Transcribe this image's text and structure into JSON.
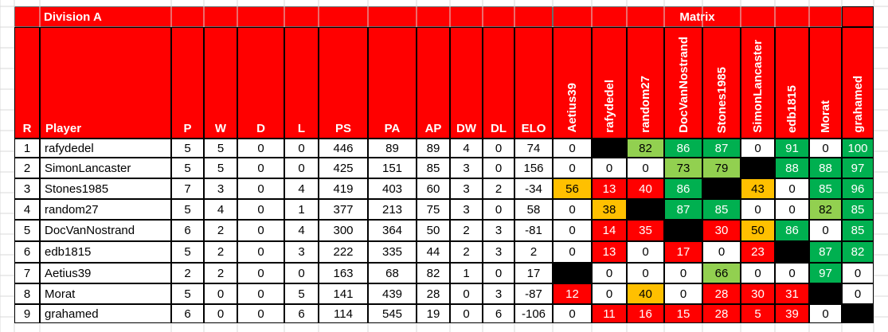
{
  "division_title": "Division A",
  "matrix_title": "Matrix",
  "headers": [
    "R",
    "Player",
    "P",
    "W",
    "D",
    "L",
    "PS",
    "PA",
    "AP",
    "DW",
    "DL",
    "ELO"
  ],
  "matrix_headers": [
    "Aetius39",
    "rafydedel",
    "random27",
    "DocVanNostrand",
    "Stones1985",
    "SimonLancaster",
    "edb1815",
    "Morat",
    "grahamed"
  ],
  "rows": [
    {
      "r": "1",
      "player": "rafydedel",
      "p": "5",
      "w": "5",
      "d": "0",
      "l": "0",
      "ps": "446",
      "pa": "89",
      "ap": "89",
      "dw": "4",
      "dl": "0",
      "elo": "74",
      "matrix": [
        "0",
        "",
        "82",
        "86",
        "87",
        "0",
        "91",
        "0",
        "100"
      ]
    },
    {
      "r": "2",
      "player": "SimonLancaster",
      "p": "5",
      "w": "5",
      "d": "0",
      "l": "0",
      "ps": "425",
      "pa": "151",
      "ap": "85",
      "dw": "3",
      "dl": "0",
      "elo": "156",
      "matrix": [
        "0",
        "0",
        "0",
        "73",
        "79",
        "",
        "88",
        "88",
        "97"
      ]
    },
    {
      "r": "3",
      "player": "Stones1985",
      "p": "7",
      "w": "3",
      "d": "0",
      "l": "4",
      "ps": "419",
      "pa": "403",
      "ap": "60",
      "dw": "3",
      "dl": "2",
      "elo": "-34",
      "matrix": [
        "56",
        "13",
        "40",
        "86",
        "",
        "43",
        "0",
        "85",
        "96"
      ]
    },
    {
      "r": "4",
      "player": "random27",
      "p": "5",
      "w": "4",
      "d": "0",
      "l": "1",
      "ps": "377",
      "pa": "213",
      "ap": "75",
      "dw": "3",
      "dl": "0",
      "elo": "58",
      "matrix": [
        "0",
        "38",
        "",
        "87",
        "85",
        "0",
        "0",
        "82",
        "85"
      ]
    },
    {
      "r": "5",
      "player": "DocVanNostrand",
      "p": "6",
      "w": "2",
      "d": "0",
      "l": "4",
      "ps": "300",
      "pa": "364",
      "ap": "50",
      "dw": "2",
      "dl": "3",
      "elo": "-81",
      "matrix": [
        "0",
        "14",
        "35",
        "",
        "30",
        "50",
        "86",
        "0",
        "85"
      ]
    },
    {
      "r": "6",
      "player": "edb1815",
      "p": "5",
      "w": "2",
      "d": "0",
      "l": "3",
      "ps": "222",
      "pa": "335",
      "ap": "44",
      "dw": "2",
      "dl": "3",
      "elo": "2",
      "matrix": [
        "0",
        "13",
        "0",
        "17",
        "0",
        "23",
        "",
        "87",
        "82"
      ]
    },
    {
      "r": "7",
      "player": "Aetius39",
      "p": "2",
      "w": "2",
      "d": "0",
      "l": "0",
      "ps": "163",
      "pa": "68",
      "ap": "82",
      "dw": "1",
      "dl": "0",
      "elo": "17",
      "matrix": [
        "",
        "0",
        "0",
        "0",
        "66",
        "0",
        "0",
        "97",
        "0"
      ]
    },
    {
      "r": "8",
      "player": "Morat",
      "p": "5",
      "w": "0",
      "d": "0",
      "l": "5",
      "ps": "141",
      "pa": "439",
      "ap": "28",
      "dw": "0",
      "dl": "3",
      "elo": "-87",
      "matrix": [
        "12",
        "0",
        "40",
        "0",
        "28",
        "30",
        "31",
        "",
        "0"
      ]
    },
    {
      "r": "9",
      "player": "grahamed",
      "p": "6",
      "w": "0",
      "d": "0",
      "l": "6",
      "ps": "114",
      "pa": "545",
      "ap": "19",
      "dw": "0",
      "dl": "6",
      "elo": "-106",
      "matrix": [
        "0",
        "11",
        "16",
        "15",
        "28",
        "5",
        "39",
        "0",
        ""
      ]
    }
  ],
  "matrix_fill": [
    [
      "white",
      "black",
      "lightgreen",
      "green",
      "green",
      "white",
      "green",
      "white",
      "green"
    ],
    [
      "white",
      "white",
      "white",
      "lightgreen",
      "lightgreen",
      "black",
      "green",
      "green",
      "green"
    ],
    [
      "orange",
      "red",
      "red",
      "green",
      "black",
      "orange",
      "white",
      "green",
      "green"
    ],
    [
      "white",
      "orange",
      "black",
      "green",
      "green",
      "white",
      "white",
      "lightgreen",
      "green"
    ],
    [
      "white",
      "red",
      "red",
      "black",
      "red",
      "orange",
      "green",
      "white",
      "green"
    ],
    [
      "white",
      "red",
      "white",
      "red",
      "white",
      "red",
      "black",
      "green",
      "green"
    ],
    [
      "black",
      "white",
      "white",
      "white",
      "lightgreen",
      "white",
      "white",
      "green",
      "white"
    ],
    [
      "red",
      "white",
      "orange",
      "white",
      "red",
      "red",
      "red",
      "black",
      "white"
    ],
    [
      "white",
      "red",
      "red",
      "red",
      "red",
      "red",
      "red",
      "white",
      "black"
    ]
  ],
  "colors": {
    "header_red": "#ff0000",
    "red": "#ff0000",
    "green": "#00b050",
    "lightgreen": "#92d050",
    "orange": "#ffc000",
    "black": "#000000",
    "white": "#ffffff",
    "grid": "#000000",
    "sheet_grid": "#d9d9d9"
  }
}
